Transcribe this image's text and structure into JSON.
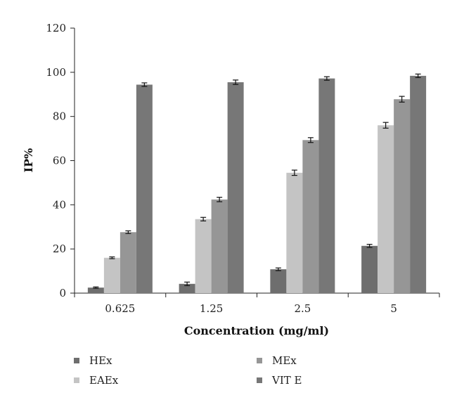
{
  "chart_data": {
    "type": "bar",
    "xlabel": "Concentration (mg/ml)",
    "ylabel": "IP%",
    "ylim": [
      0,
      120
    ],
    "yticks": [
      0,
      20,
      40,
      60,
      80,
      100,
      120
    ],
    "categories": [
      "0.625",
      "1.25",
      "2.5",
      "5"
    ],
    "series": [
      {
        "name": "HEx",
        "color": "#6e6e6e",
        "values": [
          2.5,
          4.2,
          10.8,
          21.4
        ],
        "errors": [
          0.3,
          0.8,
          0.6,
          0.7
        ]
      },
      {
        "name": "EAEx",
        "color": "#c4c4c4",
        "values": [
          16.0,
          33.5,
          54.5,
          76.0
        ],
        "errors": [
          0.4,
          0.8,
          1.2,
          1.3
        ]
      },
      {
        "name": "MEx",
        "color": "#969696",
        "values": [
          27.6,
          42.4,
          69.3,
          87.8
        ],
        "errors": [
          0.6,
          1.0,
          1.1,
          1.3
        ]
      },
      {
        "name": "VIT E",
        "color": "#777777",
        "values": [
          94.4,
          95.5,
          97.2,
          98.4
        ],
        "errors": [
          0.8,
          1.0,
          0.8,
          0.8
        ]
      }
    ],
    "grid": false,
    "legend_position": "bottom"
  }
}
